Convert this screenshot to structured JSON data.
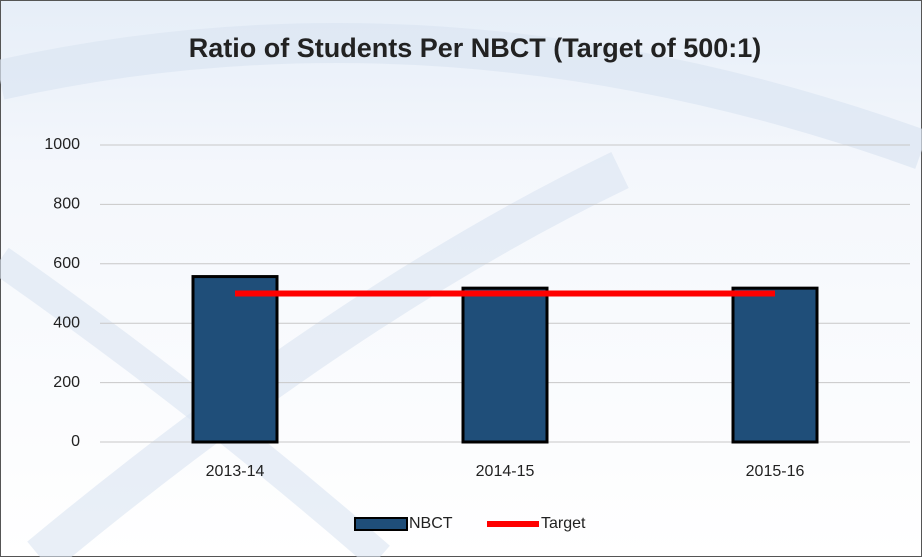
{
  "chart_data": {
    "type": "bar",
    "title": "Ratio of Students Per NBCT (Target of 500:1)",
    "categories": [
      "2013-14",
      "2014-15",
      "2015-16"
    ],
    "series": [
      {
        "name": "NBCT",
        "color": "#1f4e79",
        "type": "bar",
        "values": [
          557,
          518,
          518
        ]
      },
      {
        "name": "Target",
        "color": "#ff0000",
        "type": "line",
        "values": [
          500,
          500,
          500
        ]
      }
    ],
    "ylim": [
      0,
      1000
    ],
    "yticks": [
      0,
      200,
      400,
      600,
      800,
      1000
    ],
    "grid": true,
    "legend": "bottom"
  }
}
